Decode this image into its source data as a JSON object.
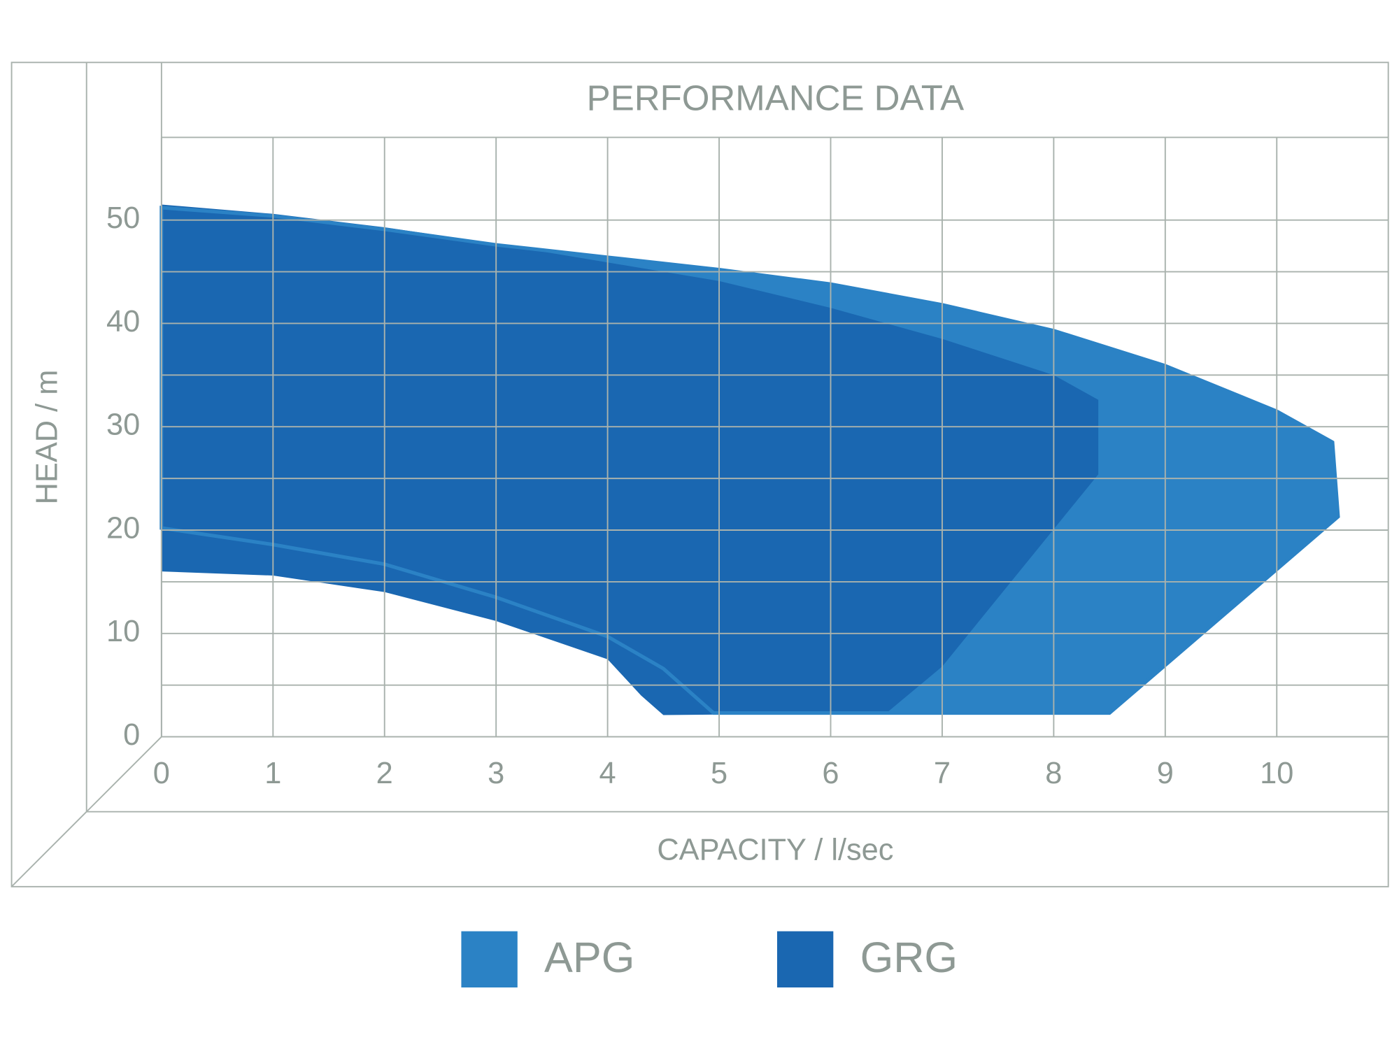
{
  "chart_data": {
    "type": "area",
    "title": "PERFORMANCE DATA",
    "x_label": "CAPACITY / l/sec",
    "y_label": "HEAD / m",
    "xlim": [
      0,
      11
    ],
    "xticks": [
      0,
      1,
      2,
      3,
      4,
      5,
      6,
      7,
      8,
      9,
      10
    ],
    "ylim": [
      0,
      58
    ],
    "yticks": [
      0,
      10,
      20,
      30,
      40,
      50
    ],
    "yminor": [
      5,
      15,
      25,
      35,
      45
    ],
    "grid": true,
    "series": [
      {
        "name": "APG",
        "color": "#2b82c5",
        "x": [
          0,
          1,
          2,
          3,
          4,
          5,
          6,
          7,
          8,
          9,
          10,
          10.5,
          10.55,
          8.5,
          4.95,
          4.5,
          4,
          3,
          2,
          1,
          0
        ],
        "values": [
          51.2,
          50.4,
          49.1,
          47.6,
          46.4,
          45.2,
          43.8,
          41.8,
          39.3,
          35.9,
          31.5,
          28.5,
          21.3,
          2.3,
          2.3,
          6.6,
          9.7,
          13.5,
          16.7,
          18.6,
          20.2
        ]
      },
      {
        "name": "GRG",
        "color": "#1a67b1",
        "x": [
          0,
          1,
          2,
          3,
          4,
          5,
          6,
          7,
          8,
          8.4,
          8.4,
          7,
          6.5,
          4.5,
          4.3,
          4,
          3,
          2,
          1,
          0
        ],
        "values": [
          51.5,
          50.6,
          49.3,
          47.7,
          45.9,
          44.1,
          41.5,
          38.5,
          35,
          32.6,
          25.4,
          6.8,
          2.3,
          2.1,
          4,
          7.5,
          11.2,
          14,
          15.6,
          16
        ]
      }
    ]
  }
}
